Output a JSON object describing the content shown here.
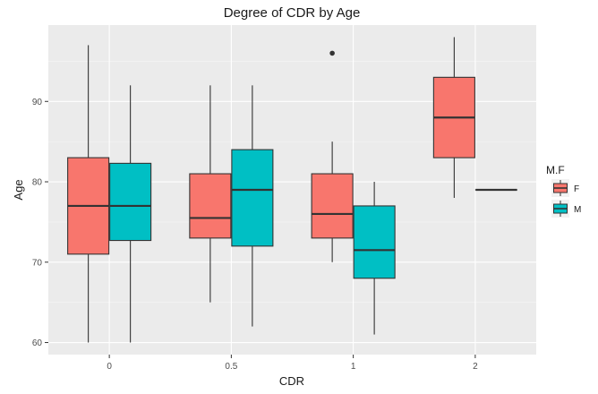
{
  "chart_data": {
    "type": "boxplot",
    "title": "Degree of CDR by Age",
    "xlabel": "CDR",
    "ylabel": "Age",
    "categories": [
      "0",
      "0.5",
      "1",
      "2"
    ],
    "y_ticks": [
      60,
      70,
      80,
      90
    ],
    "ylim": [
      58.5,
      99.5
    ],
    "legend": {
      "title": "M.F",
      "position": "right",
      "entries": [
        {
          "key": "F",
          "label": "F",
          "color": "#F8766D"
        },
        {
          "key": "M",
          "label": "M",
          "color": "#00BFC4"
        }
      ]
    },
    "series": [
      {
        "name": "F",
        "color": "#F8766D",
        "boxes": [
          {
            "category": "0",
            "min": 60,
            "q1": 71,
            "median": 77,
            "q3": 83,
            "max": 97,
            "outliers": []
          },
          {
            "category": "0.5",
            "min": 65,
            "q1": 73,
            "median": 75.5,
            "q3": 81,
            "max": 92,
            "outliers": []
          },
          {
            "category": "1",
            "min": 70,
            "q1": 73,
            "median": 76,
            "q3": 81,
            "max": 85,
            "outliers": [
              96
            ]
          },
          {
            "category": "2",
            "min": 78,
            "q1": 83,
            "median": 88,
            "q3": 93,
            "max": 98,
            "outliers": []
          }
        ]
      },
      {
        "name": "M",
        "color": "#00BFC4",
        "boxes": [
          {
            "category": "0",
            "min": 60,
            "q1": 72.7,
            "median": 77,
            "q3": 82.3,
            "max": 92,
            "outliers": []
          },
          {
            "category": "0.5",
            "min": 62,
            "q1": 72,
            "median": 79,
            "q3": 84,
            "max": 92,
            "outliers": []
          },
          {
            "category": "1",
            "min": 61,
            "q1": 68,
            "median": 71.5,
            "q3": 77,
            "max": 80,
            "outliers": []
          },
          {
            "category": "2",
            "min": 79,
            "q1": 79,
            "median": 79,
            "q3": 79,
            "max": 79,
            "outliers": []
          }
        ]
      }
    ],
    "grid": true,
    "background": "#EBEBEB"
  }
}
